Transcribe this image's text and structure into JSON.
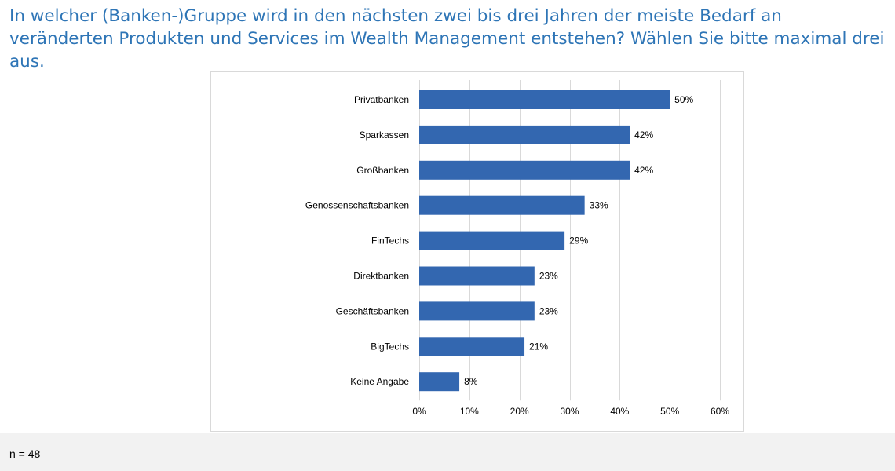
{
  "question": "In welcher (Banken-)Gruppe wird in den nächsten zwei bis drei Jahren der meiste Bedarf an veränderten Produkten und Services im Wealth Management entstehen? Wählen Sie bitte maximal drei aus.",
  "footer": {
    "sample_size": "n = 48"
  },
  "colors": {
    "title": "#2e75b6",
    "bar": "#3367b0",
    "grid": "#d9d9d9",
    "footer_bg": "#f2f2f2"
  },
  "chart_data": {
    "type": "bar",
    "orientation": "horizontal",
    "categories": [
      "Privatbanken",
      "Sparkassen",
      "Großbanken",
      "Genossenschaftsbanken",
      "FinTechs",
      "Direktbanken",
      "Geschäftsbanken",
      "BigTechs",
      "Keine Angabe"
    ],
    "values": [
      50,
      42,
      42,
      33,
      29,
      23,
      23,
      21,
      8
    ],
    "value_labels": [
      "50%",
      "42%",
      "42%",
      "33%",
      "29%",
      "23%",
      "23%",
      "21%",
      "8%"
    ],
    "xlim": [
      0,
      60
    ],
    "x_ticks": [
      0,
      10,
      20,
      30,
      40,
      50,
      60
    ],
    "x_tick_labels": [
      "0%",
      "10%",
      "20%",
      "30%",
      "40%",
      "50%",
      "60%"
    ],
    "grid": true,
    "legend": "none"
  }
}
